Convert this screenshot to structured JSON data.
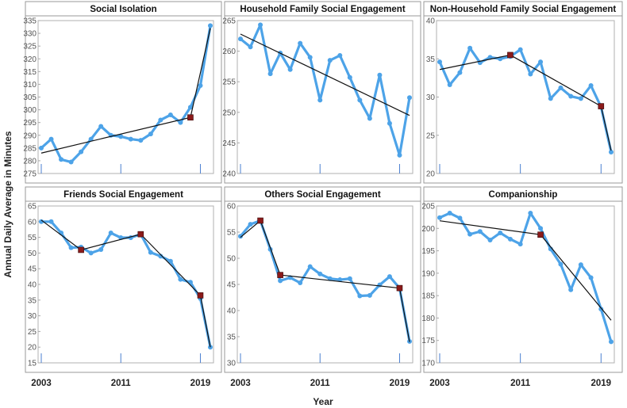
{
  "chart_data": {
    "type": "line",
    "xlabel": "Year",
    "ylabel": "Annual Daily Average in Minutes",
    "x_tick_labels": [
      "2003",
      "2011",
      "2019"
    ],
    "years": [
      2003,
      2004,
      2005,
      2006,
      2007,
      2008,
      2009,
      2010,
      2011,
      2012,
      2013,
      2014,
      2015,
      2016,
      2017,
      2018,
      2019,
      2020
    ],
    "colors": {
      "series": "#4da3e8",
      "trend": "#111111",
      "breakpoint": "#8b1a1a"
    },
    "panels": [
      {
        "title": "Social Isolation",
        "ylim": [
          275,
          335
        ],
        "yticks": [
          275,
          280,
          285,
          290,
          295,
          300,
          305,
          310,
          315,
          320,
          325,
          330,
          335
        ],
        "values": [
          285,
          288.5,
          280.5,
          279.5,
          283.5,
          288.5,
          293.5,
          290,
          289.5,
          288.5,
          288,
          290.5,
          296,
          298,
          295,
          301,
          309.5,
          333
        ],
        "trend": [
          [
            2003,
            283
          ],
          [
            2018,
            297
          ],
          [
            2020,
            332
          ]
        ],
        "breakpoints": [
          [
            2018,
            297
          ]
        ]
      },
      {
        "title": "Household Family Social Engagement",
        "ylim": [
          240,
          265
        ],
        "yticks": [
          240,
          245,
          250,
          255,
          260,
          265
        ],
        "values": [
          262,
          260.7,
          264.3,
          256.3,
          259.7,
          257,
          261.3,
          259,
          252,
          258.5,
          259.3,
          255.7,
          252,
          249,
          256.1,
          248.2,
          243,
          252.4
        ],
        "trend": [
          [
            2003,
            262.8
          ],
          [
            2020,
            249.5
          ]
        ],
        "breakpoints": []
      },
      {
        "title": "Non-Household Family Social Engagement",
        "ylim": [
          20,
          40
        ],
        "yticks": [
          20,
          25,
          30,
          35,
          40
        ],
        "values": [
          34.6,
          31.6,
          33.2,
          36.4,
          34.5,
          35.2,
          35,
          35.3,
          36.2,
          33,
          34.6,
          29.8,
          31.2,
          30.1,
          29.8,
          31.5,
          28.7,
          22.8
        ],
        "trend": [
          [
            2003,
            33.6
          ],
          [
            2010,
            35.5
          ],
          [
            2019,
            28.8
          ],
          [
            2020,
            23
          ]
        ],
        "breakpoints": [
          [
            2010,
            35.5
          ],
          [
            2019,
            28.8
          ]
        ]
      },
      {
        "title": "Friends Social Engagement",
        "ylim": [
          15,
          65
        ],
        "yticks": [
          15,
          20,
          25,
          30,
          35,
          40,
          45,
          50,
          55,
          60,
          65
        ],
        "values": [
          60,
          60,
          56.4,
          51.7,
          51.9,
          50,
          51.1,
          56.4,
          54.9,
          54.9,
          56,
          50.2,
          49,
          47.4,
          41.6,
          40.7,
          35.5,
          20
        ],
        "trend": [
          [
            2003,
            60.5
          ],
          [
            2007,
            51
          ],
          [
            2013,
            56
          ],
          [
            2019,
            36.5
          ],
          [
            2020,
            20
          ]
        ],
        "breakpoints": [
          [
            2007,
            51
          ],
          [
            2013,
            56
          ],
          [
            2019,
            36.5
          ]
        ]
      },
      {
        "title": "Others Social Engagement",
        "ylim": [
          30,
          60
        ],
        "yticks": [
          30,
          35,
          40,
          45,
          50,
          55,
          60
        ],
        "values": [
          54.2,
          56.5,
          57.2,
          51.7,
          45.7,
          46.3,
          45.3,
          48.4,
          47,
          46.1,
          45.9,
          46.1,
          42.8,
          42.9,
          44.9,
          46.5,
          44.3,
          34.1
        ],
        "trend": [
          [
            2003,
            54
          ],
          [
            2005,
            57.2
          ],
          [
            2007,
            46.8
          ],
          [
            2019,
            44.3
          ],
          [
            2020,
            34
          ]
        ],
        "breakpoints": [
          [
            2005,
            57.2
          ],
          [
            2007,
            46.8
          ],
          [
            2019,
            44.3
          ]
        ]
      },
      {
        "title": "Companionship",
        "ylim": [
          170,
          205
        ],
        "yticks": [
          170,
          175,
          180,
          185,
          190,
          195,
          200,
          205
        ],
        "values": [
          202.4,
          203.4,
          202.3,
          198.7,
          199.3,
          197.4,
          199,
          197.6,
          196.5,
          203.4,
          200,
          195.4,
          192,
          186.3,
          191.9,
          189,
          182,
          174.7
        ],
        "trend": [
          [
            2003,
            201.7
          ],
          [
            2013,
            198.6
          ],
          [
            2020,
            179.5
          ]
        ],
        "breakpoints": [
          [
            2013,
            198.6
          ]
        ]
      }
    ]
  }
}
